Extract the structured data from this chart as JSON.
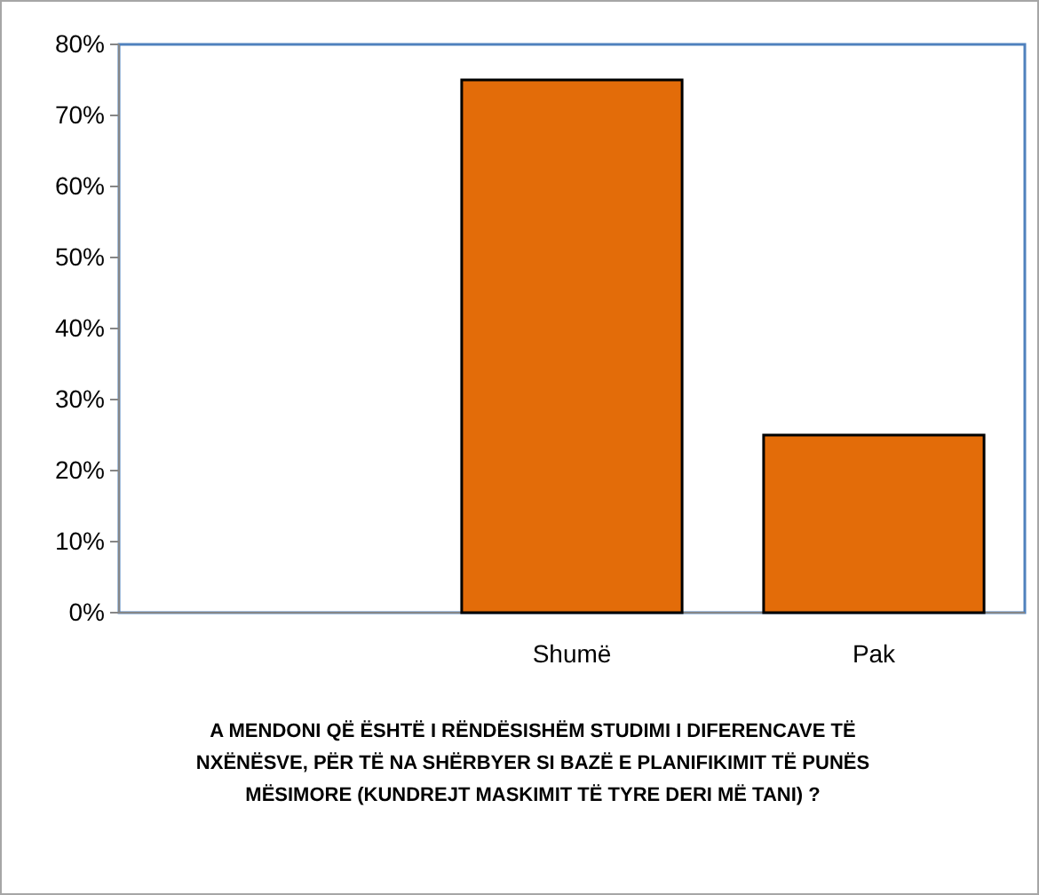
{
  "chart_data": {
    "type": "bar",
    "title": "A MENDONI QË ËSHTË I RËNDËSISHËM STUDIMI I DIFERENCAVE TË NXËNËSVE, PËR TË NA SHËRBYER SI BAZË E PLANIFIKIMIT TË PUNËS MËSIMORE (KUNDREJT MASKIMIT TË TYRE DERI MË TANI) ?",
    "categories": [
      null,
      "Shumë",
      "Pak"
    ],
    "values": [
      null,
      75,
      25
    ],
    "color": "#e36c09",
    "ylim": [
      0,
      80
    ],
    "yticks": [
      {
        "value": 0,
        "label": "0%"
      },
      {
        "value": 10,
        "label": "10%"
      },
      {
        "value": 20,
        "label": "20%"
      },
      {
        "value": 30,
        "label": "30%"
      },
      {
        "value": 40,
        "label": "40%"
      },
      {
        "value": 50,
        "label": "50%"
      },
      {
        "value": 60,
        "label": "60%"
      },
      {
        "value": 70,
        "label": "70%"
      },
      {
        "value": 80,
        "label": "80%"
      }
    ],
    "grid": false
  }
}
